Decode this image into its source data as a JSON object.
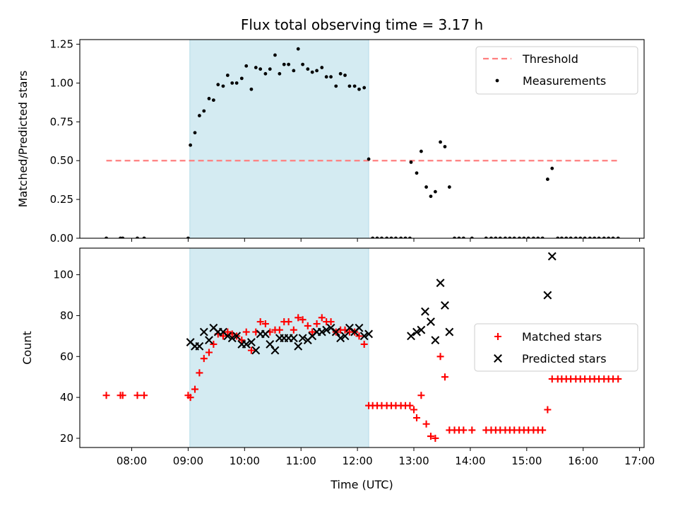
{
  "chart_data": {
    "type": "scatter",
    "title": "Flux total observing time = 3.17 h",
    "xlabel": "Time (UTC)",
    "x_unit": "hours UTC",
    "xlim": [
      7.08,
      17.08
    ],
    "x_ticks": [
      8,
      9,
      10,
      11,
      12,
      13,
      14,
      15,
      16,
      17
    ],
    "x_tick_labels": [
      "08:00",
      "09:00",
      "10:00",
      "11:00",
      "12:00",
      "13:00",
      "14:00",
      "15:00",
      "16:00",
      "17:00"
    ],
    "highlight_span": {
      "x_start": 9.03,
      "x_end": 12.2,
      "color": "#add8e6"
    },
    "panels": [
      {
        "ylabel": "Matched/Predicted stars",
        "ylim": [
          0,
          1.28
        ],
        "y_ticks": [
          0.0,
          0.25,
          0.5,
          0.75,
          1.0,
          1.25
        ],
        "y_tick_labels": [
          "0.00",
          "0.25",
          "0.50",
          "0.75",
          "1.00",
          "1.25"
        ],
        "legend": {
          "position": "top-right",
          "entries": [
            "Threshold",
            "Measurements"
          ]
        },
        "threshold": {
          "name": "Threshold",
          "y": 0.5,
          "x_start": 7.55,
          "x_end": 16.6,
          "color": "#ff7f7f"
        },
        "measurements": {
          "name": "Measurements",
          "color": "#000000",
          "points": [
            [
              7.55,
              0
            ],
            [
              7.8,
              0
            ],
            [
              7.84,
              0
            ],
            [
              8.1,
              0
            ],
            [
              8.22,
              0
            ],
            [
              9.0,
              0
            ],
            [
              9.04,
              0.6
            ],
            [
              9.12,
              0.68
            ],
            [
              9.2,
              0.79
            ],
            [
              9.28,
              0.82
            ],
            [
              9.37,
              0.9
            ],
            [
              9.45,
              0.89
            ],
            [
              9.53,
              0.99
            ],
            [
              9.62,
              0.98
            ],
            [
              9.7,
              1.05
            ],
            [
              9.78,
              1.0
            ],
            [
              9.86,
              1.0
            ],
            [
              9.95,
              1.03
            ],
            [
              10.03,
              1.11
            ],
            [
              10.12,
              0.96
            ],
            [
              10.2,
              1.1
            ],
            [
              10.28,
              1.09
            ],
            [
              10.37,
              1.06
            ],
            [
              10.45,
              1.09
            ],
            [
              10.54,
              1.18
            ],
            [
              10.62,
              1.06
            ],
            [
              10.7,
              1.12
            ],
            [
              10.78,
              1.12
            ],
            [
              10.87,
              1.08
            ],
            [
              10.95,
              1.22
            ],
            [
              11.03,
              1.12
            ],
            [
              11.12,
              1.09
            ],
            [
              11.2,
              1.07
            ],
            [
              11.28,
              1.08
            ],
            [
              11.37,
              1.1
            ],
            [
              11.45,
              1.04
            ],
            [
              11.53,
              1.04
            ],
            [
              11.62,
              0.98
            ],
            [
              11.7,
              1.06
            ],
            [
              11.78,
              1.05
            ],
            [
              11.86,
              0.98
            ],
            [
              11.95,
              0.98
            ],
            [
              12.03,
              0.96
            ],
            [
              12.12,
              0.97
            ],
            [
              12.2,
              0.51
            ],
            [
              12.27,
              0
            ],
            [
              12.35,
              0
            ],
            [
              12.43,
              0
            ],
            [
              12.52,
              0
            ],
            [
              12.6,
              0
            ],
            [
              12.68,
              0
            ],
            [
              12.77,
              0
            ],
            [
              12.85,
              0
            ],
            [
              12.93,
              0
            ],
            [
              12.95,
              0.49
            ],
            [
              13.05,
              0.42
            ],
            [
              13.13,
              0.56
            ],
            [
              13.22,
              0.33
            ],
            [
              13.3,
              0.27
            ],
            [
              13.38,
              0.3
            ],
            [
              13.47,
              0.62
            ],
            [
              13.55,
              0.59
            ],
            [
              13.63,
              0.33
            ],
            [
              13.72,
              0
            ],
            [
              13.8,
              0
            ],
            [
              13.88,
              0
            ],
            [
              14.03,
              0
            ],
            [
              14.28,
              0
            ],
            [
              14.37,
              0
            ],
            [
              14.45,
              0
            ],
            [
              14.53,
              0
            ],
            [
              14.62,
              0
            ],
            [
              14.7,
              0
            ],
            [
              14.78,
              0
            ],
            [
              14.87,
              0
            ],
            [
              14.95,
              0
            ],
            [
              15.03,
              0
            ],
            [
              15.12,
              0
            ],
            [
              15.2,
              0
            ],
            [
              15.28,
              0
            ],
            [
              15.37,
              0.38
            ],
            [
              15.45,
              0.45
            ],
            [
              15.55,
              0
            ],
            [
              15.62,
              0
            ],
            [
              15.7,
              0
            ],
            [
              15.78,
              0
            ],
            [
              15.87,
              0
            ],
            [
              15.95,
              0
            ],
            [
              16.03,
              0
            ],
            [
              16.12,
              0
            ],
            [
              16.2,
              0
            ],
            [
              16.28,
              0
            ],
            [
              16.37,
              0
            ],
            [
              16.45,
              0
            ],
            [
              16.53,
              0
            ],
            [
              16.62,
              0
            ]
          ]
        }
      },
      {
        "ylabel": "Count",
        "ylim": [
          15.5,
          113
        ],
        "y_ticks": [
          20,
          40,
          60,
          80,
          100
        ],
        "y_tick_labels": [
          "20",
          "40",
          "60",
          "80",
          "100"
        ],
        "legend": {
          "position": "center-right",
          "entries": [
            "Matched stars",
            "Predicted stars"
          ]
        },
        "series": [
          {
            "name": "Matched stars",
            "marker": "plus",
            "color": "#ff0000",
            "points": [
              [
                7.55,
                41
              ],
              [
                7.8,
                41
              ],
              [
                7.84,
                41
              ],
              [
                8.1,
                41
              ],
              [
                8.22,
                41
              ],
              [
                9.0,
                41
              ],
              [
                9.04,
                40
              ],
              [
                9.12,
                44
              ],
              [
                9.2,
                52
              ],
              [
                9.28,
                59
              ],
              [
                9.37,
                62
              ],
              [
                9.45,
                66
              ],
              [
                9.53,
                71
              ],
              [
                9.62,
                70
              ],
              [
                9.7,
                72
              ],
              [
                9.78,
                71
              ],
              [
                9.86,
                70
              ],
              [
                9.95,
                68
              ],
              [
                10.03,
                72
              ],
              [
                10.12,
                63
              ],
              [
                10.2,
                72
              ],
              [
                10.28,
                77
              ],
              [
                10.37,
                76
              ],
              [
                10.45,
                72
              ],
              [
                10.54,
                73
              ],
              [
                10.62,
                73
              ],
              [
                10.7,
                77
              ],
              [
                10.78,
                77
              ],
              [
                10.87,
                73
              ],
              [
                10.95,
                79
              ],
              [
                11.03,
                78
              ],
              [
                11.12,
                75
              ],
              [
                11.2,
                72
              ],
              [
                11.28,
                76
              ],
              [
                11.37,
                79
              ],
              [
                11.45,
                77
              ],
              [
                11.53,
                77
              ],
              [
                11.62,
                72
              ],
              [
                11.7,
                73
              ],
              [
                11.78,
                73
              ],
              [
                11.86,
                72
              ],
              [
                11.95,
                72
              ],
              [
                12.03,
                70
              ],
              [
                12.12,
                66
              ],
              [
                12.2,
                36
              ],
              [
                12.27,
                36
              ],
              [
                12.35,
                36
              ],
              [
                12.43,
                36
              ],
              [
                12.52,
                36
              ],
              [
                12.6,
                36
              ],
              [
                12.68,
                36
              ],
              [
                12.77,
                36
              ],
              [
                12.85,
                36
              ],
              [
                12.93,
                36
              ],
              [
                13.0,
                34
              ],
              [
                13.05,
                30
              ],
              [
                13.13,
                41
              ],
              [
                13.22,
                27
              ],
              [
                13.3,
                21
              ],
              [
                13.38,
                20
              ],
              [
                13.47,
                60
              ],
              [
                13.55,
                50
              ],
              [
                13.63,
                24
              ],
              [
                13.72,
                24
              ],
              [
                13.8,
                24
              ],
              [
                13.88,
                24
              ],
              [
                14.03,
                24
              ],
              [
                14.28,
                24
              ],
              [
                14.37,
                24
              ],
              [
                14.45,
                24
              ],
              [
                14.53,
                24
              ],
              [
                14.62,
                24
              ],
              [
                14.7,
                24
              ],
              [
                14.78,
                24
              ],
              [
                14.87,
                24
              ],
              [
                14.95,
                24
              ],
              [
                15.03,
                24
              ],
              [
                15.12,
                24
              ],
              [
                15.2,
                24
              ],
              [
                15.28,
                24
              ],
              [
                15.37,
                34
              ],
              [
                15.45,
                49
              ],
              [
                15.55,
                49
              ],
              [
                15.62,
                49
              ],
              [
                15.7,
                49
              ],
              [
                15.78,
                49
              ],
              [
                15.87,
                49
              ],
              [
                15.95,
                49
              ],
              [
                16.03,
                49
              ],
              [
                16.12,
                49
              ],
              [
                16.2,
                49
              ],
              [
                16.28,
                49
              ],
              [
                16.37,
                49
              ],
              [
                16.45,
                49
              ],
              [
                16.53,
                49
              ],
              [
                16.62,
                49
              ]
            ]
          },
          {
            "name": "Predicted stars",
            "marker": "x",
            "color": "#000000",
            "points": [
              [
                9.04,
                67
              ],
              [
                9.12,
                65
              ],
              [
                9.2,
                65
              ],
              [
                9.28,
                72
              ],
              [
                9.37,
                68
              ],
              [
                9.45,
                74
              ],
              [
                9.53,
                72
              ],
              [
                9.62,
                72
              ],
              [
                9.7,
                70
              ],
              [
                9.78,
                69
              ],
              [
                9.86,
                70
              ],
              [
                9.95,
                66
              ],
              [
                10.03,
                66
              ],
              [
                10.12,
                67
              ],
              [
                10.2,
                63
              ],
              [
                10.28,
                71
              ],
              [
                10.37,
                71
              ],
              [
                10.45,
                66
              ],
              [
                10.54,
                63
              ],
              [
                10.62,
                69
              ],
              [
                10.7,
                69
              ],
              [
                10.78,
                69
              ],
              [
                10.87,
                69
              ],
              [
                10.95,
                65
              ],
              [
                11.03,
                69
              ],
              [
                11.12,
                68
              ],
              [
                11.2,
                70
              ],
              [
                11.28,
                72
              ],
              [
                11.37,
                72
              ],
              [
                11.45,
                73
              ],
              [
                11.53,
                74
              ],
              [
                11.62,
                72
              ],
              [
                11.7,
                69
              ],
              [
                11.78,
                70
              ],
              [
                11.86,
                74
              ],
              [
                11.95,
                72
              ],
              [
                12.03,
                74
              ],
              [
                12.12,
                70
              ],
              [
                12.2,
                71
              ],
              [
                12.95,
                70
              ],
              [
                13.05,
                72
              ],
              [
                13.13,
                73
              ],
              [
                13.2,
                82
              ],
              [
                13.3,
                77
              ],
              [
                13.38,
                68
              ],
              [
                13.47,
                96
              ],
              [
                13.55,
                85
              ],
              [
                13.63,
                72
              ],
              [
                15.37,
                90
              ],
              [
                15.45,
                109
              ]
            ]
          }
        ]
      }
    ]
  }
}
